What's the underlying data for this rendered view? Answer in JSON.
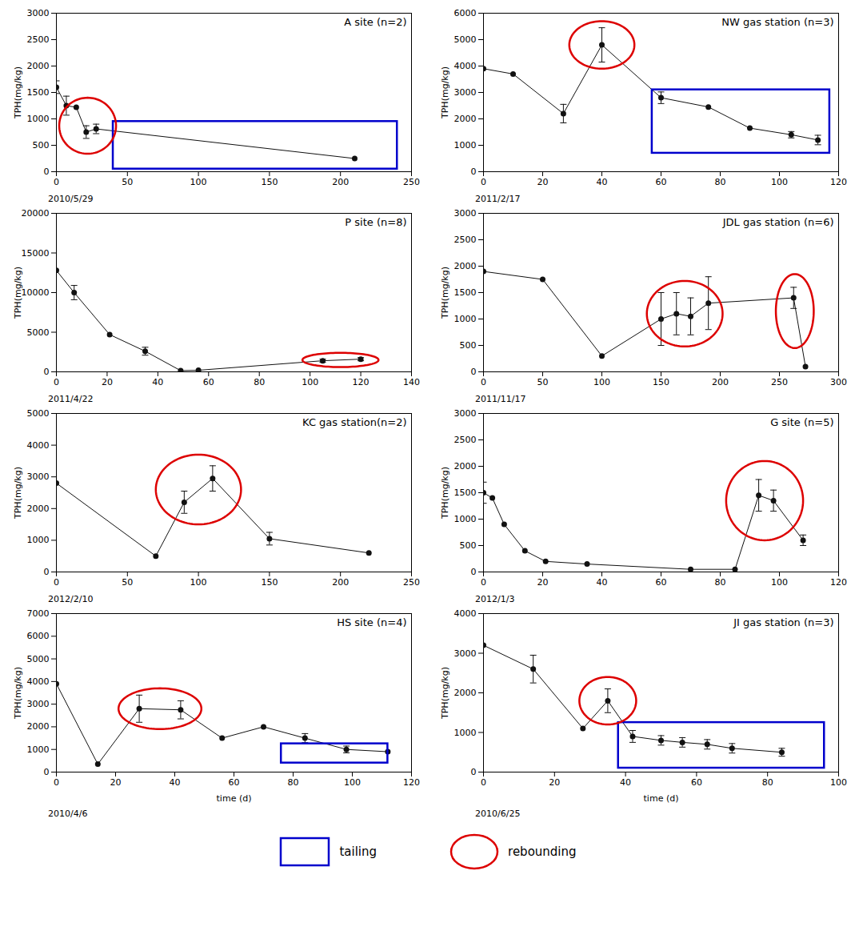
{
  "chart_data": [
    {
      "type": "line",
      "title": "A site (n=2)",
      "annotation": "2010/5/29",
      "ylabel": "TPH(mg/kg)",
      "x": [
        0,
        7,
        14,
        21,
        28,
        210
      ],
      "values": [
        1600,
        1250,
        1220,
        750,
        810,
        250
      ],
      "yerr": [
        120,
        180,
        0,
        120,
        90,
        0
      ],
      "color": "#111111",
      "marker": "circle",
      "grid": false,
      "xlim": [
        0,
        250
      ],
      "ylim": [
        0,
        3000
      ],
      "xticks": [
        0,
        50,
        100,
        150,
        200,
        250
      ],
      "yticks": [
        0,
        500,
        1000,
        1500,
        2000,
        2500,
        3000
      ],
      "rebound_ellipses": [
        {
          "cx": 22,
          "cy": 870,
          "rx": 20,
          "ry": 530
        }
      ],
      "tailing_rect": {
        "x0": 40,
        "y0": 50,
        "x1": 240,
        "y1": 950
      }
    },
    {
      "type": "line",
      "title": "NW gas station (n=3)",
      "annotation": "2011/2/17",
      "ylabel": "TPH(mg/kg)",
      "x": [
        0,
        10,
        27,
        40,
        60,
        76,
        90,
        104,
        113
      ],
      "values": [
        3900,
        3700,
        2200,
        4800,
        2800,
        2450,
        1650,
        1400,
        1200
      ],
      "yerr": [
        0,
        0,
        350,
        650,
        220,
        0,
        0,
        120,
        180
      ],
      "color": "#111111",
      "marker": "circle",
      "grid": false,
      "xlim": [
        0,
        120
      ],
      "ylim": [
        0,
        6000
      ],
      "xticks": [
        0,
        20,
        40,
        60,
        80,
        100,
        120
      ],
      "yticks": [
        0,
        1000,
        2000,
        3000,
        4000,
        5000,
        6000
      ],
      "rebound_ellipses": [
        {
          "cx": 40,
          "cy": 4800,
          "rx": 11,
          "ry": 900
        }
      ],
      "tailing_rect": {
        "x0": 57,
        "y0": 700,
        "x1": 117,
        "y1": 3100
      }
    },
    {
      "type": "line",
      "title": "P site (n=8)",
      "annotation": "2011/4/22",
      "ylabel": "TPH(mg/kg)",
      "x": [
        0,
        7,
        21,
        35,
        49,
        56,
        105,
        120
      ],
      "values": [
        12800,
        10000,
        4700,
        2600,
        150,
        200,
        1400,
        1600
      ],
      "yerr": [
        0,
        900,
        0,
        500,
        0,
        0,
        200,
        200
      ],
      "color": "#111111",
      "marker": "circle",
      "grid": false,
      "xlim": [
        0,
        140
      ],
      "ylim": [
        0,
        20000
      ],
      "xticks": [
        0,
        20,
        40,
        60,
        80,
        100,
        120,
        140
      ],
      "yticks": [
        0,
        5000,
        10000,
        15000,
        20000
      ],
      "rebound_ellipses": [
        {
          "cx": 112,
          "cy": 1500,
          "rx": 15,
          "ry": 900
        }
      ],
      "tailing_rect": null
    },
    {
      "type": "line",
      "title": "JDL gas station (n=6)",
      "annotation": "2011/11/17",
      "ylabel": "TPH(mg/kg)",
      "x": [
        0,
        50,
        100,
        150,
        163,
        175,
        190,
        262,
        272
      ],
      "values": [
        1900,
        1750,
        300,
        1000,
        1100,
        1050,
        1300,
        1400,
        100
      ],
      "yerr": [
        0,
        0,
        0,
        500,
        400,
        350,
        500,
        200,
        0
      ],
      "color": "#111111",
      "marker": "circle",
      "grid": false,
      "xlim": [
        0,
        300
      ],
      "ylim": [
        0,
        3000
      ],
      "xticks": [
        0,
        50,
        100,
        150,
        200,
        250,
        300
      ],
      "yticks": [
        0,
        500,
        1000,
        1500,
        2000,
        2500,
        3000
      ],
      "rebound_ellipses": [
        {
          "cx": 170,
          "cy": 1100,
          "rx": 32,
          "ry": 620
        },
        {
          "cx": 263,
          "cy": 1150,
          "rx": 16,
          "ry": 700
        }
      ],
      "tailing_rect": null
    },
    {
      "type": "line",
      "title": "KC gas station(n=2)",
      "annotation": "2012/2/10",
      "ylabel": "TPH(mg/kg)",
      "x": [
        0,
        70,
        90,
        110,
        150,
        220
      ],
      "values": [
        2800,
        500,
        2200,
        2950,
        1050,
        600
      ],
      "yerr": [
        0,
        0,
        350,
        400,
        200,
        0
      ],
      "color": "#111111",
      "marker": "circle",
      "grid": false,
      "xlim": [
        0,
        250
      ],
      "ylim": [
        0,
        5000
      ],
      "xticks": [
        0,
        50,
        100,
        150,
        200,
        250
      ],
      "yticks": [
        0,
        1000,
        2000,
        3000,
        4000,
        5000
      ],
      "rebound_ellipses": [
        {
          "cx": 100,
          "cy": 2600,
          "rx": 30,
          "ry": 1100
        }
      ],
      "tailing_rect": null
    },
    {
      "type": "line",
      "title": "G site (n=5)",
      "annotation": "2012/1/3",
      "ylabel": "TPH(mg/kg)",
      "x": [
        0,
        3,
        7,
        14,
        21,
        35,
        70,
        85,
        93,
        98,
        108
      ],
      "values": [
        1500,
        1400,
        900,
        400,
        200,
        150,
        50,
        50,
        1450,
        1350,
        600
      ],
      "yerr": [
        200,
        0,
        0,
        0,
        0,
        0,
        0,
        0,
        300,
        200,
        100
      ],
      "color": "#111111",
      "marker": "circle",
      "grid": false,
      "xlim": [
        0,
        120
      ],
      "ylim": [
        0,
        3000
      ],
      "xticks": [
        0,
        20,
        40,
        60,
        80,
        100,
        120
      ],
      "yticks": [
        0,
        500,
        1000,
        1500,
        2000,
        2500,
        3000
      ],
      "rebound_ellipses": [
        {
          "cx": 95,
          "cy": 1350,
          "rx": 13,
          "ry": 750
        }
      ],
      "tailing_rect": null
    },
    {
      "type": "line",
      "title": "HS site (n=4)",
      "annotation": "2010/4/6",
      "ylabel": "TPH(mg/kg)",
      "xlabel": "time (d)",
      "x": [
        0,
        14,
        28,
        42,
        56,
        70,
        84,
        98,
        112
      ],
      "values": [
        3900,
        350,
        2800,
        2750,
        1500,
        2000,
        1500,
        1000,
        900
      ],
      "yerr": [
        0,
        0,
        600,
        400,
        0,
        0,
        200,
        150,
        0
      ],
      "color": "#111111",
      "marker": "circle",
      "grid": false,
      "xlim": [
        0,
        120
      ],
      "ylim": [
        0,
        7000
      ],
      "xticks": [
        0,
        20,
        40,
        60,
        80,
        100,
        120
      ],
      "yticks": [
        0,
        1000,
        2000,
        3000,
        4000,
        5000,
        6000,
        7000
      ],
      "rebound_ellipses": [
        {
          "cx": 35,
          "cy": 2800,
          "rx": 14,
          "ry": 900
        }
      ],
      "tailing_rect": {
        "x0": 76,
        "y0": 400,
        "x1": 112,
        "y1": 1250
      }
    },
    {
      "type": "line",
      "title": "JI gas station (n=3)",
      "annotation": "2010/6/25",
      "ylabel": "TPH(mg/kg)",
      "xlabel": "time (d)",
      "x": [
        0,
        14,
        28,
        35,
        42,
        50,
        56,
        63,
        70,
        84
      ],
      "values": [
        3200,
        2600,
        1100,
        1800,
        900,
        800,
        750,
        700,
        600,
        500
      ],
      "yerr": [
        0,
        350,
        0,
        300,
        150,
        120,
        120,
        120,
        120,
        100
      ],
      "color": "#111111",
      "marker": "circle",
      "grid": false,
      "xlim": [
        0,
        100
      ],
      "ylim": [
        0,
        4000
      ],
      "xticks": [
        0,
        20,
        40,
        60,
        80,
        100
      ],
      "yticks": [
        0,
        1000,
        2000,
        3000,
        4000
      ],
      "rebound_ellipses": [
        {
          "cx": 35,
          "cy": 1800,
          "rx": 8,
          "ry": 600
        }
      ],
      "tailing_rect": {
        "x0": 38,
        "y0": 100,
        "x1": 96,
        "y1": 1250
      }
    }
  ],
  "legend_shapes": {
    "rect": {
      "name": "tailing",
      "color": "#0000cc"
    },
    "ellipse": {
      "name": "rebounding",
      "color": "#dd0000"
    }
  }
}
